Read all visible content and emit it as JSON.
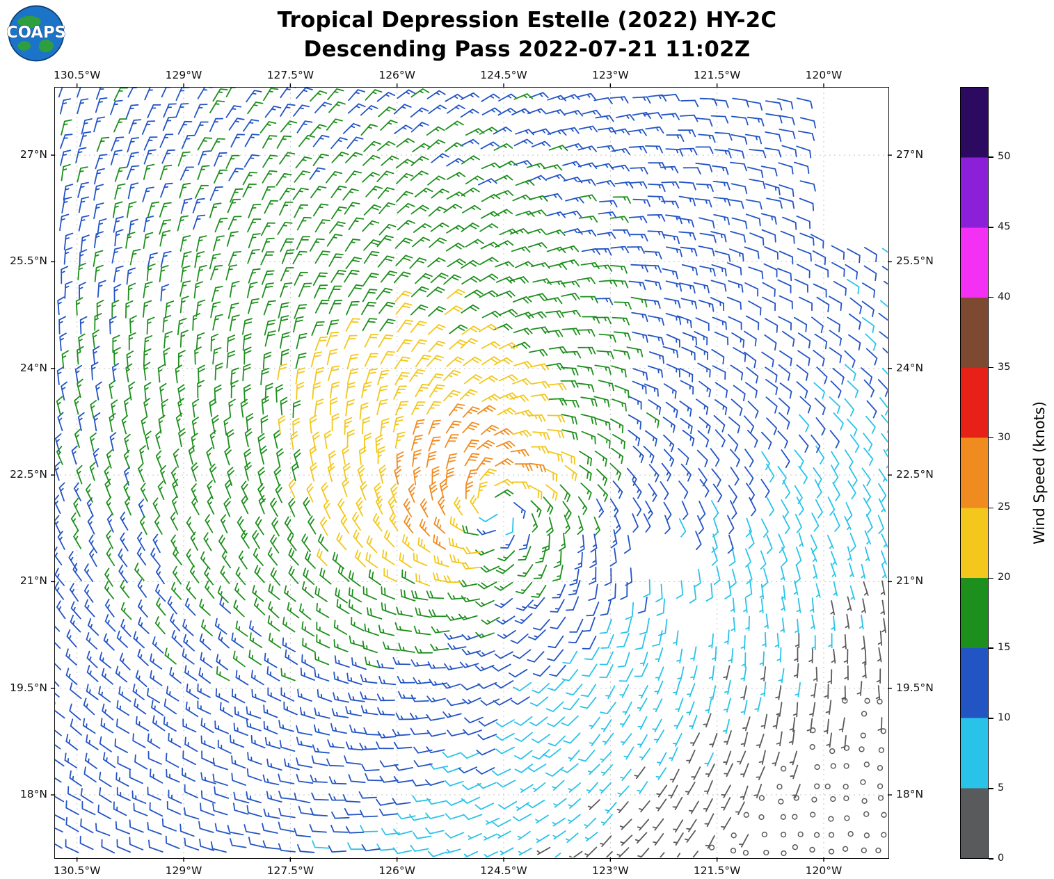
{
  "header": {
    "title_line1": "Tropical Depression Estelle (2022) HY-2C",
    "title_line2": "Descending Pass 2022-07-21 11:02Z",
    "logo_text": "COAPS"
  },
  "chart_data": {
    "type": "wind_barb_map",
    "title": "Tropical Depression Estelle (2022) HY-2C",
    "subtitle": "Descending Pass 2022-07-21 11:02Z",
    "storm_name": "Estelle",
    "storm_status": "Tropical Depression",
    "satellite": "HY-2C",
    "pass_type": "Descending",
    "pass_time": "2022-07-21 11:02Z",
    "projection": {
      "lon_min": -130.81,
      "lon_max": -119.1,
      "lat_min": 17.12,
      "lat_max": 27.95
    },
    "x_ticks": [
      {
        "value": -130.5,
        "label": "130.5°W"
      },
      {
        "value": -129.0,
        "label": "129°W"
      },
      {
        "value": -127.5,
        "label": "127.5°W"
      },
      {
        "value": -126.0,
        "label": "126°W"
      },
      {
        "value": -124.5,
        "label": "124.5°W"
      },
      {
        "value": -123.0,
        "label": "123°W"
      },
      {
        "value": -121.5,
        "label": "121.5°W"
      },
      {
        "value": -120.0,
        "label": "120°W"
      }
    ],
    "y_ticks": [
      {
        "value": 27.0,
        "label": "27°N"
      },
      {
        "value": 25.5,
        "label": "25.5°N"
      },
      {
        "value": 24.0,
        "label": "24°N"
      },
      {
        "value": 22.5,
        "label": "22.5°N"
      },
      {
        "value": 21.0,
        "label": "21°N"
      },
      {
        "value": 19.5,
        "label": "19.5°N"
      },
      {
        "value": 18.0,
        "label": "18°N"
      }
    ],
    "grid": {
      "visible": true,
      "style": "dotted",
      "color": "#c4c4c4"
    },
    "barb_spacing_deg": 0.235,
    "speed_bins_knots": [
      [
        0,
        5
      ],
      [
        5,
        10
      ],
      [
        10,
        15
      ],
      [
        15,
        20
      ],
      [
        20,
        25
      ],
      [
        25,
        30
      ],
      [
        30,
        35
      ],
      [
        35,
        40
      ],
      [
        40,
        45
      ],
      [
        45,
        50
      ],
      [
        50,
        55
      ]
    ],
    "speed_bin_colors": [
      "#595a5c",
      "#29c3ea",
      "#2254c4",
      "#1d8f1d",
      "#f3c71b",
      "#f08b1f",
      "#e82118",
      "#7d4930",
      "#f430f4",
      "#8b20d8",
      "#2c0a60"
    ],
    "storm_center": {
      "lon": -124.6,
      "lat": 22.0
    },
    "wind_field_model": {
      "rotation": "cyclonic_counterclockwise",
      "center_lon": -124.6,
      "center_lat": 22.0,
      "inflow_angle_deg": 25,
      "speed_center_kt": 11,
      "speed_max_kt": 23,
      "radius_max_wind_deg": 0.8,
      "decay_exponent": 0.4,
      "asym_amplitude_kt": 6,
      "asym_width_deg": 4.0,
      "asym_direction_deg": 140,
      "north_gradient_kt": 3,
      "west_gradient_kt": 2,
      "se_calm_strength_kt": 9
    },
    "data_gaps": [
      {
        "type": "rect",
        "lon_min": -120.2,
        "lon_max": -119.1,
        "lat_min": 25.9,
        "lat_max": 27.95
      },
      {
        "type": "ellipse",
        "lon": -122.25,
        "lat": 21.4,
        "rlon": 0.55,
        "rlat": 0.35
      },
      {
        "type": "ellipse",
        "lon": -121.8,
        "lat": 20.55,
        "rlon": 0.42,
        "rlat": 0.3
      }
    ],
    "colorbar": {
      "label": "Wind Speed (knots)",
      "vmin": 0,
      "vmax": 55,
      "ticks": [
        0,
        5,
        10,
        15,
        20,
        25,
        30,
        35,
        40,
        45,
        50
      ],
      "segment_colors": [
        "#595a5c",
        "#29c3ea",
        "#2254c4",
        "#1d8f1d",
        "#f3c71b",
        "#f08b1f",
        "#e82118",
        "#7d4930",
        "#f430f4",
        "#8b20d8",
        "#2c0a60"
      ]
    }
  }
}
